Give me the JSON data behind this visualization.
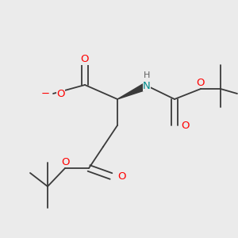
{
  "bg_color": "#ebebeb",
  "colors": {
    "O": "#ff0000",
    "N": "#008b8b",
    "H": "#606060",
    "bond": "#3a3a3a"
  },
  "font_size": 9.5,
  "font_size_small": 8.0
}
